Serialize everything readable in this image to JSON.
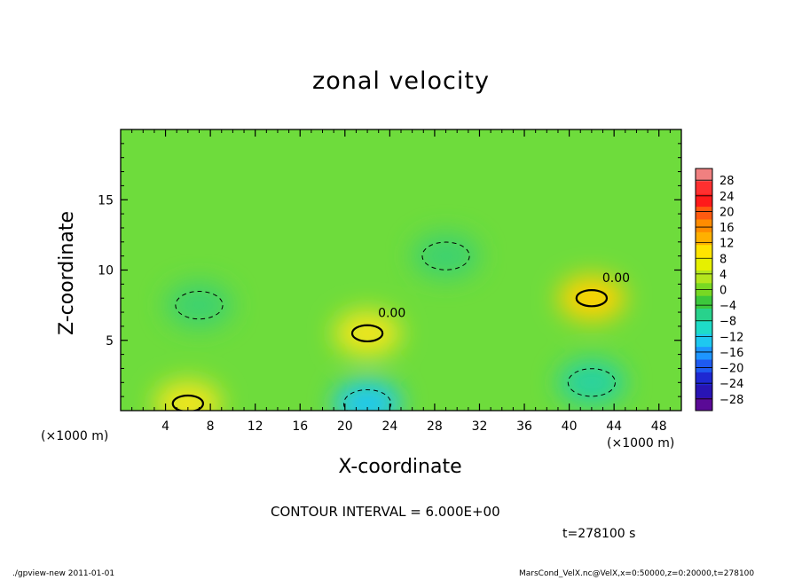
{
  "chart_data": {
    "type": "heatmap",
    "title": "zonal velocity",
    "xlabel": "X-coordinate",
    "ylabel": "Z-coordinate",
    "x_unit_label": "(×1000 m)",
    "xlim": [
      0,
      50
    ],
    "ylim": [
      0,
      20
    ],
    "x_ticks": [
      "4",
      "8",
      "12",
      "16",
      "20",
      "24",
      "28",
      "32",
      "36",
      "40",
      "44",
      "48"
    ],
    "y_ticks": [
      "5",
      "10",
      "15"
    ],
    "contour_label": "0.00",
    "colorbar": {
      "labels": [
        "28",
        "24",
        "20",
        "16",
        "12",
        "8",
        "4",
        "0",
        "−4",
        "−8",
        "−12",
        "−16",
        "−20",
        "−24",
        "−28"
      ],
      "colors": [
        "#f08080",
        "#ff3030",
        "#ff1a1a",
        "#ff5a10",
        "#ff8c00",
        "#ffb000",
        "#ffe400",
        "#e6f000",
        "#b4e61e",
        "#78d823",
        "#3cc83c",
        "#28d28c",
        "#1edcc8",
        "#1ec8f0",
        "#1e96ff",
        "#1e5af0",
        "#1e28d2",
        "#2814b4",
        "#5a0a96"
      ]
    },
    "contour_interval_text": "CONTOUR INTERVAL = 6.000E+00",
    "time_text": "t=278100 s",
    "field_features": [
      {
        "x": 22,
        "z": 5.5,
        "value": 8,
        "note": "positive core"
      },
      {
        "x": 42,
        "z": 8,
        "value": 10,
        "note": "positive core"
      },
      {
        "x": 6,
        "z": 0.5,
        "value": 8,
        "note": "surface positive"
      },
      {
        "x": 7,
        "z": 7.5,
        "value": -6,
        "note": "negative"
      },
      {
        "x": 29,
        "z": 11,
        "value": -6,
        "note": "negative"
      },
      {
        "x": 42,
        "z": 2,
        "value": -12,
        "note": "negative near surface"
      },
      {
        "x": 22,
        "z": 0.5,
        "value": -14,
        "note": "negative near surface"
      }
    ]
  },
  "footer": {
    "left": "./gpview-new   2011-01-01",
    "right": "MarsCond_VelX.nc@VelX,x=0:50000,z=0:20000,t=278100"
  }
}
